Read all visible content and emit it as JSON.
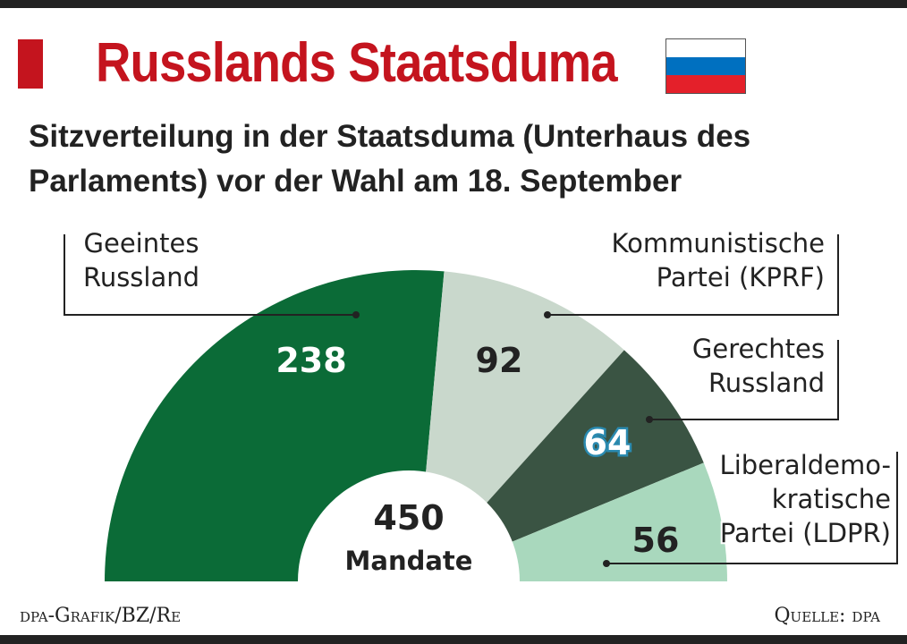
{
  "header": {
    "title": "Russlands Staatsduma",
    "subtitle_line1": "Sitzverteilung in der Staatsduma (Unterhaus des",
    "subtitle_line2": "Parlaments) vor der Wahl am 18. September",
    "flag_colors": [
      "#ffffff",
      "#0070c0",
      "#e4202a"
    ]
  },
  "chart_data": {
    "type": "pie",
    "shape": "semicircle-donut",
    "title": "Sitzverteilung in der Staatsduma (Unterhaus des Parlaments) vor der Wahl am 18. September",
    "total": 450,
    "center_value": "450",
    "center_label": "Mandate",
    "series": [
      {
        "label_lines": [
          "Geeintes",
          "Russland"
        ],
        "value": 238,
        "color": "#0b6b37",
        "text_color": "#ffffff"
      },
      {
        "label_lines": [
          "Kommunistische",
          "Partei (KPRF)"
        ],
        "value": 92,
        "color": "#c9d8cc",
        "text_color": "#222222"
      },
      {
        "label_lines": [
          "Gerechtes",
          "Russland"
        ],
        "value": 64,
        "color": "#3a5443",
        "text_color": "#ffffff"
      },
      {
        "label_lines": [
          "Liberaldemo-",
          "kratische",
          "Partei (LDPR)"
        ],
        "value": 56,
        "color": "#a9d8bd",
        "text_color": "#222222"
      }
    ]
  },
  "footer": {
    "credit": "dpa-Grafik/BZ/Re",
    "source": "Quelle: dpa"
  }
}
